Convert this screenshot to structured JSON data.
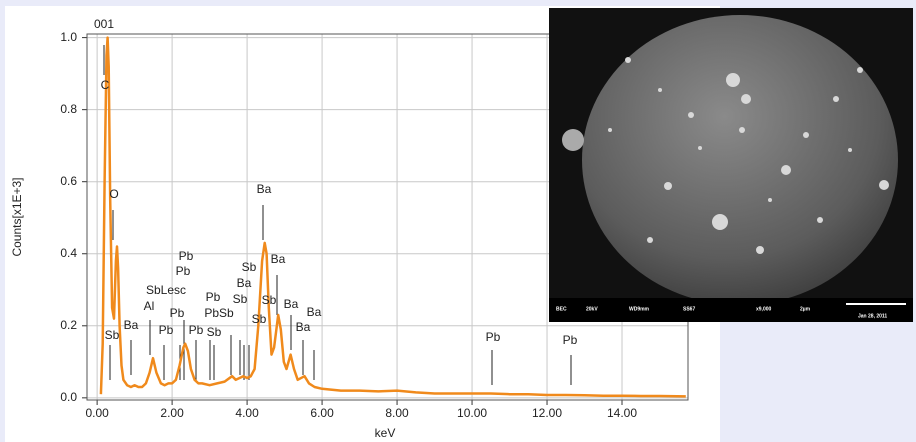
{
  "chart_data": {
    "type": "line",
    "x_label": "keV",
    "y_label": "Counts[x1E+3]",
    "xlim": [
      -0.27,
      15.76
    ],
    "xticks": [
      {
        "value": 0,
        "label": "0.00"
      },
      {
        "value": 2,
        "label": "2.00"
      },
      {
        "value": 4,
        "label": "4.00"
      },
      {
        "value": 6,
        "label": "6.00"
      },
      {
        "value": 8,
        "label": "8.00"
      },
      {
        "value": 10,
        "label": "10.00"
      },
      {
        "value": 12,
        "label": "12.00"
      },
      {
        "value": 14,
        "label": "14.00"
      }
    ],
    "ylim": [
      -0.006,
      1.01
    ],
    "yticks": [
      {
        "value": 0,
        "label": "0.0"
      },
      0.2,
      0.4,
      0.6,
      0.8,
      {
        "value": 1,
        "label": "1.0"
      }
    ],
    "grid": true,
    "series": [
      {
        "color": "#f08a1c",
        "x": [
          0.1,
          0.15,
          0.2,
          0.25,
          0.28,
          0.31,
          0.35,
          0.4,
          0.45,
          0.5,
          0.53,
          0.56,
          0.6,
          0.65,
          0.7,
          0.8,
          0.9,
          1.0,
          1.1,
          1.2,
          1.3,
          1.4,
          1.49,
          1.58,
          1.7,
          1.8,
          1.9,
          2.0,
          2.1,
          2.2,
          2.3,
          2.35,
          2.42,
          2.5,
          2.6,
          2.7,
          2.8,
          3.0,
          3.2,
          3.4,
          3.6,
          3.7,
          3.8,
          3.9,
          4.0,
          4.1,
          4.2,
          4.3,
          4.4,
          4.47,
          4.52,
          4.58,
          4.65,
          4.72,
          4.83,
          4.9,
          4.98,
          5.05,
          5.16,
          5.25,
          5.35,
          5.53,
          5.65,
          5.8,
          6.0,
          6.5,
          7.0,
          7.5,
          8.0,
          8.5,
          9.0,
          9.5,
          10.0,
          10.5,
          11.0,
          11.5,
          12.0,
          12.5,
          13.0,
          13.5,
          14.0,
          14.5,
          15.0,
          15.7
        ],
        "values": [
          0.01,
          0.15,
          0.6,
          0.95,
          1.0,
          0.92,
          0.55,
          0.25,
          0.22,
          0.38,
          0.42,
          0.36,
          0.2,
          0.09,
          0.05,
          0.035,
          0.03,
          0.035,
          0.03,
          0.03,
          0.04,
          0.07,
          0.11,
          0.07,
          0.04,
          0.035,
          0.04,
          0.04,
          0.05,
          0.09,
          0.14,
          0.15,
          0.13,
          0.08,
          0.05,
          0.04,
          0.04,
          0.035,
          0.04,
          0.045,
          0.06,
          0.05,
          0.055,
          0.06,
          0.055,
          0.06,
          0.08,
          0.2,
          0.38,
          0.43,
          0.4,
          0.25,
          0.12,
          0.14,
          0.23,
          0.19,
          0.1,
          0.08,
          0.12,
          0.08,
          0.05,
          0.06,
          0.04,
          0.03,
          0.025,
          0.02,
          0.02,
          0.018,
          0.02,
          0.015,
          0.012,
          0.012,
          0.012,
          0.012,
          0.01,
          0.01,
          0.008,
          0.008,
          0.007,
          0.006,
          0.006,
          0.005,
          0.005,
          0.004
        ]
      }
    ],
    "annotations": [
      "001",
      "C",
      "O",
      "Sb",
      "Ba",
      "SbLesc",
      "Al",
      "Pb",
      "Pb",
      "Pb",
      "Pb",
      "Pb",
      "Pb",
      "PbSb",
      "Sb",
      "Sb",
      "Ba",
      "Sb",
      "Sb",
      "Ba",
      "Sb",
      "Ba",
      "Ba",
      "Ba",
      "Ba",
      "Pb",
      "Pb"
    ]
  },
  "image": {
    "info": [
      "BEC",
      "20kV",
      "WD9mm",
      "SS67",
      "x9,000",
      "2µm",
      "Jan 28, 2011"
    ]
  }
}
